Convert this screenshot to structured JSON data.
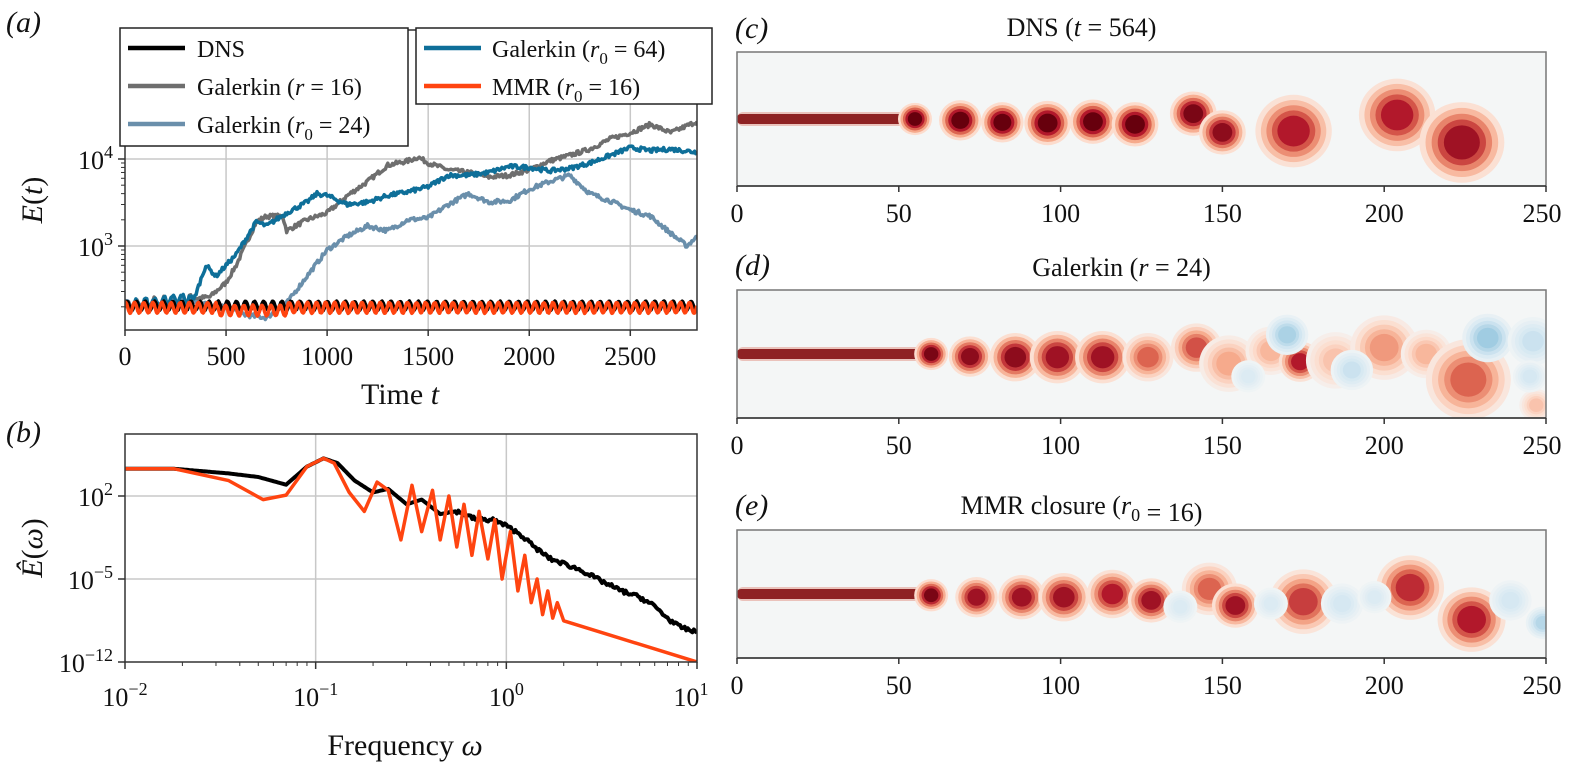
{
  "figure": {
    "panel_labels": [
      "(a)",
      "(b)",
      "(c)",
      "(d)",
      "(e)"
    ]
  },
  "colors": {
    "dns": "#000000",
    "galerkin_r16": "#6e6e6e",
    "galerkin_r0_24": "#6a8fab",
    "galerkin_r0_64": "#0e6f99",
    "mmr_r0_16": "#ff4410",
    "grid": "#c8c8c8",
    "field_background": "#f4f6f6",
    "vorticity_positive_dark": "#67000d",
    "vorticity_positive_mid": "#d6604d",
    "vorticity_positive_light": "#fbd0c0",
    "vorticity_negative_light": "#d1e5f0",
    "vorticity_negative_mid": "#92c5de"
  },
  "chart_data": [
    {
      "id": "a",
      "type": "line",
      "title": "",
      "xlabel": "Time t",
      "ylabel": "E(t)",
      "xscale": "linear",
      "yscale": "log",
      "xlim": [
        0,
        2830
      ],
      "ylim": [
        140,
        60000
      ],
      "xticks": [
        0,
        500,
        1000,
        1500,
        2000,
        2500
      ],
      "xtick_labels": [
        "0",
        "500",
        "1000",
        "1500",
        "2000",
        "2500"
      ],
      "yticks": [
        1000,
        10000
      ],
      "ytick_labels": [
        "10^3",
        "10^4"
      ],
      "grid": true,
      "legend_position": "top",
      "legend": [
        {
          "label": "DNS",
          "color_key": "dns"
        },
        {
          "label": "Galerkin (r = 16)",
          "color_key": "galerkin_r16"
        },
        {
          "label": "Galerkin (r0 = 24)",
          "color_key": "galerkin_r0_24"
        },
        {
          "label": "Galerkin (r0 = 64)",
          "color_key": "galerkin_r0_64"
        },
        {
          "label": "MMR (r0 = 16)",
          "color_key": "mmr_r0_16"
        }
      ],
      "series": [
        {
          "name": "DNS",
          "color_key": "dns",
          "kind": "oscillating",
          "mean": 205,
          "amplitude": 0.12,
          "period": 45,
          "x": [
            0,
            2830
          ],
          "y": [
            205,
            205
          ]
        },
        {
          "name": "Galerkin (r = 16)",
          "color_key": "galerkin_r16",
          "x": [
            0,
            300,
            350,
            420,
            500,
            550,
            650,
            700,
            780,
            800,
            900,
            1000,
            1100,
            1200,
            1300,
            1400,
            1450,
            1500,
            1600,
            1700,
            1800,
            1900,
            2000,
            2100,
            2200,
            2300,
            2400,
            2500,
            2600,
            2700,
            2830
          ],
          "y": [
            205,
            240,
            250,
            260,
            380,
            600,
            1900,
            2200,
            2200,
            1500,
            2000,
            2400,
            3800,
            5500,
            8500,
            9500,
            10500,
            9000,
            7500,
            7000,
            6200,
            6500,
            7500,
            9500,
            11000,
            13000,
            17000,
            20000,
            25000,
            20000,
            27000
          ]
        },
        {
          "name": "Galerkin (r0 = 24)",
          "color_key": "galerkin_r0_24",
          "x": [
            0,
            300,
            500,
            600,
            700,
            800,
            900,
            1000,
            1100,
            1200,
            1300,
            1400,
            1500,
            1600,
            1700,
            1800,
            1900,
            2000,
            2100,
            2200,
            2300,
            2400,
            2500,
            2600,
            2700,
            2780,
            2830
          ],
          "y": [
            205,
            230,
            200,
            160,
            150,
            220,
            450,
            900,
            1300,
            1700,
            1500,
            2000,
            2100,
            3000,
            4000,
            3200,
            3300,
            4500,
            5500,
            6500,
            4000,
            3300,
            2600,
            2200,
            1400,
            1000,
            1300
          ]
        },
        {
          "name": "Galerkin (r0 = 64)",
          "color_key": "galerkin_r0_64",
          "x": [
            0,
            300,
            340,
            400,
            450,
            500,
            550,
            650,
            700,
            800,
            900,
            950,
            1000,
            1100,
            1200,
            1300,
            1400,
            1500,
            1600,
            1700,
            1800,
            1900,
            2000,
            2100,
            2200,
            2300,
            2400,
            2500,
            2600,
            2700,
            2830
          ],
          "y": [
            205,
            250,
            240,
            600,
            450,
            600,
            800,
            1900,
            1700,
            2400,
            3200,
            4000,
            3800,
            3000,
            3200,
            3800,
            4200,
            4800,
            6500,
            6500,
            7000,
            8200,
            8000,
            7300,
            7800,
            9000,
            11000,
            13500,
            12500,
            13000,
            12000
          ]
        },
        {
          "name": "MMR (r0 = 16)",
          "color_key": "mmr_r0_16",
          "kind": "oscillating",
          "mean": 195,
          "amplitude": 0.14,
          "period": 45,
          "x": [
            0,
            2830
          ],
          "y": [
            195,
            195
          ]
        }
      ]
    },
    {
      "id": "b",
      "type": "line",
      "title": "",
      "xlabel": "Frequency ω",
      "ylabel": "Ê(ω)",
      "xscale": "log",
      "yscale": "log",
      "xlim": [
        0.01,
        10
      ],
      "ylim": [
        1e-12,
        10000000.0
      ],
      "xticks": [
        0.01,
        0.1,
        1,
        10
      ],
      "xtick_labels": [
        "10^-2",
        "10^-1",
        "10^0",
        "10^1"
      ],
      "yticks": [
        1e-12,
        1e-05,
        100
      ],
      "ytick_labels": [
        "10^-12",
        "10^-5",
        "10^2"
      ],
      "grid": true,
      "series": [
        {
          "name": "DNS",
          "color_key": "dns",
          "x": [
            0.01,
            0.018,
            0.035,
            0.05,
            0.07,
            0.09,
            0.11,
            0.13,
            0.16,
            0.2,
            0.24,
            0.3,
            0.36,
            0.45,
            0.55,
            0.7,
            0.85,
            1.0,
            1.2,
            1.4,
            1.7,
            2.0,
            2.5,
            3.0,
            4.0,
            5.0,
            6.0,
            7.0,
            8.0,
            10.0
          ],
          "y": [
            20000,
            20000,
            8000,
            4000,
            900,
            30000,
            150000,
            60000,
            2000,
            200,
            400,
            20,
            50,
            3,
            5,
            1,
            1,
            0.3,
            0.05,
            0.005,
            0.0005,
            0.0002,
            5e-05,
            1e-05,
            1e-06,
            3e-07,
            5e-08,
            5e-09,
            1e-09,
            3e-10
          ]
        },
        {
          "name": "MMR (r0 = 16)",
          "color_key": "mmr_r0_16",
          "x": [
            0.01,
            0.018,
            0.035,
            0.053,
            0.07,
            0.09,
            0.11,
            0.125,
            0.15,
            0.18,
            0.21,
            0.24,
            0.28,
            0.32,
            0.36,
            0.41,
            0.45,
            0.5,
            0.55,
            0.6,
            0.66,
            0.72,
            0.8,
            0.87,
            0.95,
            1.05,
            1.15,
            1.25,
            1.35,
            1.45,
            1.55,
            1.65,
            1.75,
            1.85,
            2.0,
            10.0
          ],
          "y": [
            20000,
            20000,
            2000,
            50,
            120,
            30000,
            150000,
            60000,
            200,
            5,
            1500,
            300,
            0.02,
            800,
            0.1,
            300,
            0.02,
            100,
            0.005,
            20,
            0.001,
            5,
            0.0005,
            1,
            1e-05,
            0.1,
            1e-06,
            0.001,
            1e-07,
            1e-05,
            1e-08,
            1e-06,
            5e-09,
            1e-07,
            3e-09,
            1e-12
          ]
        }
      ]
    },
    {
      "id": "c",
      "type": "heatmap",
      "title": "DNS (t = 564)",
      "xlabel": "",
      "ylabel": "",
      "xlim": [
        0,
        250
      ],
      "xticks": [
        0,
        50,
        100,
        150,
        200,
        250
      ],
      "xtick_labels": [
        "0",
        "50",
        "100",
        "150",
        "200",
        "250"
      ],
      "colormap": "RdBu_r",
      "jet": {
        "x_end": 55,
        "y": 0.0
      },
      "vortices": [
        {
          "x": 55,
          "y": 0.0,
          "r": 4,
          "v": 1.0
        },
        {
          "x": 69,
          "y": -0.02,
          "r": 5,
          "v": 1.0
        },
        {
          "x": 82,
          "y": -0.05,
          "r": 5,
          "v": 1.0
        },
        {
          "x": 96,
          "y": -0.06,
          "r": 5.5,
          "v": 1.0
        },
        {
          "x": 110,
          "y": -0.04,
          "r": 5.5,
          "v": 1.0
        },
        {
          "x": 123,
          "y": -0.08,
          "r": 5.5,
          "v": 1.0
        },
        {
          "x": 141,
          "y": 0.08,
          "r": 5.5,
          "v": 0.95
        },
        {
          "x": 150,
          "y": -0.2,
          "r": 5.5,
          "v": 0.9
        },
        {
          "x": 172,
          "y": -0.18,
          "r": 9,
          "v": 0.8
        },
        {
          "x": 204,
          "y": 0.06,
          "r": 9,
          "v": 0.8
        },
        {
          "x": 224,
          "y": -0.35,
          "r": 10,
          "v": 0.85
        }
      ]
    },
    {
      "id": "d",
      "type": "heatmap",
      "title": "Galerkin (r = 24)",
      "xlabel": "",
      "ylabel": "",
      "xlim": [
        0,
        250
      ],
      "xticks": [
        0,
        50,
        100,
        150,
        200,
        250
      ],
      "xtick_labels": [
        "0",
        "50",
        "100",
        "150",
        "200",
        "250"
      ],
      "colormap": "RdBu_r",
      "jet": {
        "x_end": 62,
        "y": 0.0
      },
      "vortices": [
        {
          "x": 60,
          "y": 0.0,
          "r": 4,
          "v": 0.95
        },
        {
          "x": 72,
          "y": -0.04,
          "r": 5,
          "v": 0.9
        },
        {
          "x": 86,
          "y": -0.05,
          "r": 6,
          "v": 0.9
        },
        {
          "x": 99,
          "y": -0.05,
          "r": 6.5,
          "v": 0.85
        },
        {
          "x": 113,
          "y": -0.05,
          "r": 6.5,
          "v": 0.85
        },
        {
          "x": 127,
          "y": -0.05,
          "r": 6,
          "v": 0.6
        },
        {
          "x": 142,
          "y": 0.1,
          "r": 6,
          "v": 0.65
        },
        {
          "x": 152,
          "y": -0.15,
          "r": 7,
          "v": 0.4
        },
        {
          "x": 165,
          "y": 0.05,
          "r": 6,
          "v": 0.35
        },
        {
          "x": 174,
          "y": -0.12,
          "r": 5,
          "v": 0.8
        },
        {
          "x": 185,
          "y": -0.1,
          "r": 7,
          "v": 0.3
        },
        {
          "x": 200,
          "y": 0.1,
          "r": 8,
          "v": 0.45
        },
        {
          "x": 213,
          "y": 0.0,
          "r": 6,
          "v": 0.35
        },
        {
          "x": 226,
          "y": -0.4,
          "r": 10,
          "v": 0.6
        },
        {
          "x": 247,
          "y": -0.8,
          "r": 4,
          "v": 0.3
        },
        {
          "x": 170,
          "y": 0.3,
          "r": 5,
          "v": -0.45
        },
        {
          "x": 232,
          "y": 0.25,
          "r": 6,
          "v": -0.5
        },
        {
          "x": 246,
          "y": 0.2,
          "r": 6,
          "v": -0.3
        },
        {
          "x": 190,
          "y": -0.25,
          "r": 5,
          "v": -0.3
        },
        {
          "x": 158,
          "y": -0.35,
          "r": 4,
          "v": -0.2
        },
        {
          "x": 245,
          "y": -0.35,
          "r": 4,
          "v": -0.25
        }
      ]
    },
    {
      "id": "e",
      "type": "heatmap",
      "title": "MMR closure (r0 = 16)",
      "xlabel": "",
      "ylabel": "",
      "xlim": [
        0,
        250
      ],
      "xticks": [
        0,
        50,
        100,
        150,
        200,
        250
      ],
      "xtick_labels": [
        "0",
        "50",
        "100",
        "150",
        "200",
        "250"
      ],
      "colormap": "RdBu_r",
      "jet": {
        "x_end": 60,
        "y": 0.0
      },
      "vortices": [
        {
          "x": 60,
          "y": -0.02,
          "r": 4,
          "v": 0.95
        },
        {
          "x": 74,
          "y": -0.05,
          "r": 5,
          "v": 0.85
        },
        {
          "x": 88,
          "y": -0.05,
          "r": 5.5,
          "v": 0.85
        },
        {
          "x": 101,
          "y": -0.05,
          "r": 6,
          "v": 0.85
        },
        {
          "x": 116,
          "y": 0.0,
          "r": 6,
          "v": 0.8
        },
        {
          "x": 128,
          "y": -0.1,
          "r": 5.5,
          "v": 0.85
        },
        {
          "x": 146,
          "y": 0.08,
          "r": 6.5,
          "v": 0.6
        },
        {
          "x": 154,
          "y": -0.18,
          "r": 5.5,
          "v": 0.85
        },
        {
          "x": 175,
          "y": -0.12,
          "r": 8,
          "v": 0.7
        },
        {
          "x": 208,
          "y": 0.1,
          "r": 8,
          "v": 0.75
        },
        {
          "x": 227,
          "y": -0.4,
          "r": 8,
          "v": 0.8
        },
        {
          "x": 137,
          "y": -0.2,
          "r": 4,
          "v": -0.2
        },
        {
          "x": 165,
          "y": -0.15,
          "r": 4,
          "v": -0.2
        },
        {
          "x": 187,
          "y": -0.15,
          "r": 5,
          "v": -0.25
        },
        {
          "x": 197,
          "y": -0.05,
          "r": 4,
          "v": -0.2
        },
        {
          "x": 239,
          "y": -0.1,
          "r": 5,
          "v": -0.25
        },
        {
          "x": 249,
          "y": -0.45,
          "r": 4,
          "v": -0.4
        }
      ]
    }
  ],
  "text": {
    "a_label": "(a)",
    "b_label": "(b)",
    "c_label": "(c)",
    "d_label": "(d)",
    "e_label": "(e)",
    "a_xlabel": "Time t",
    "b_xlabel": "Frequency ω"
  }
}
